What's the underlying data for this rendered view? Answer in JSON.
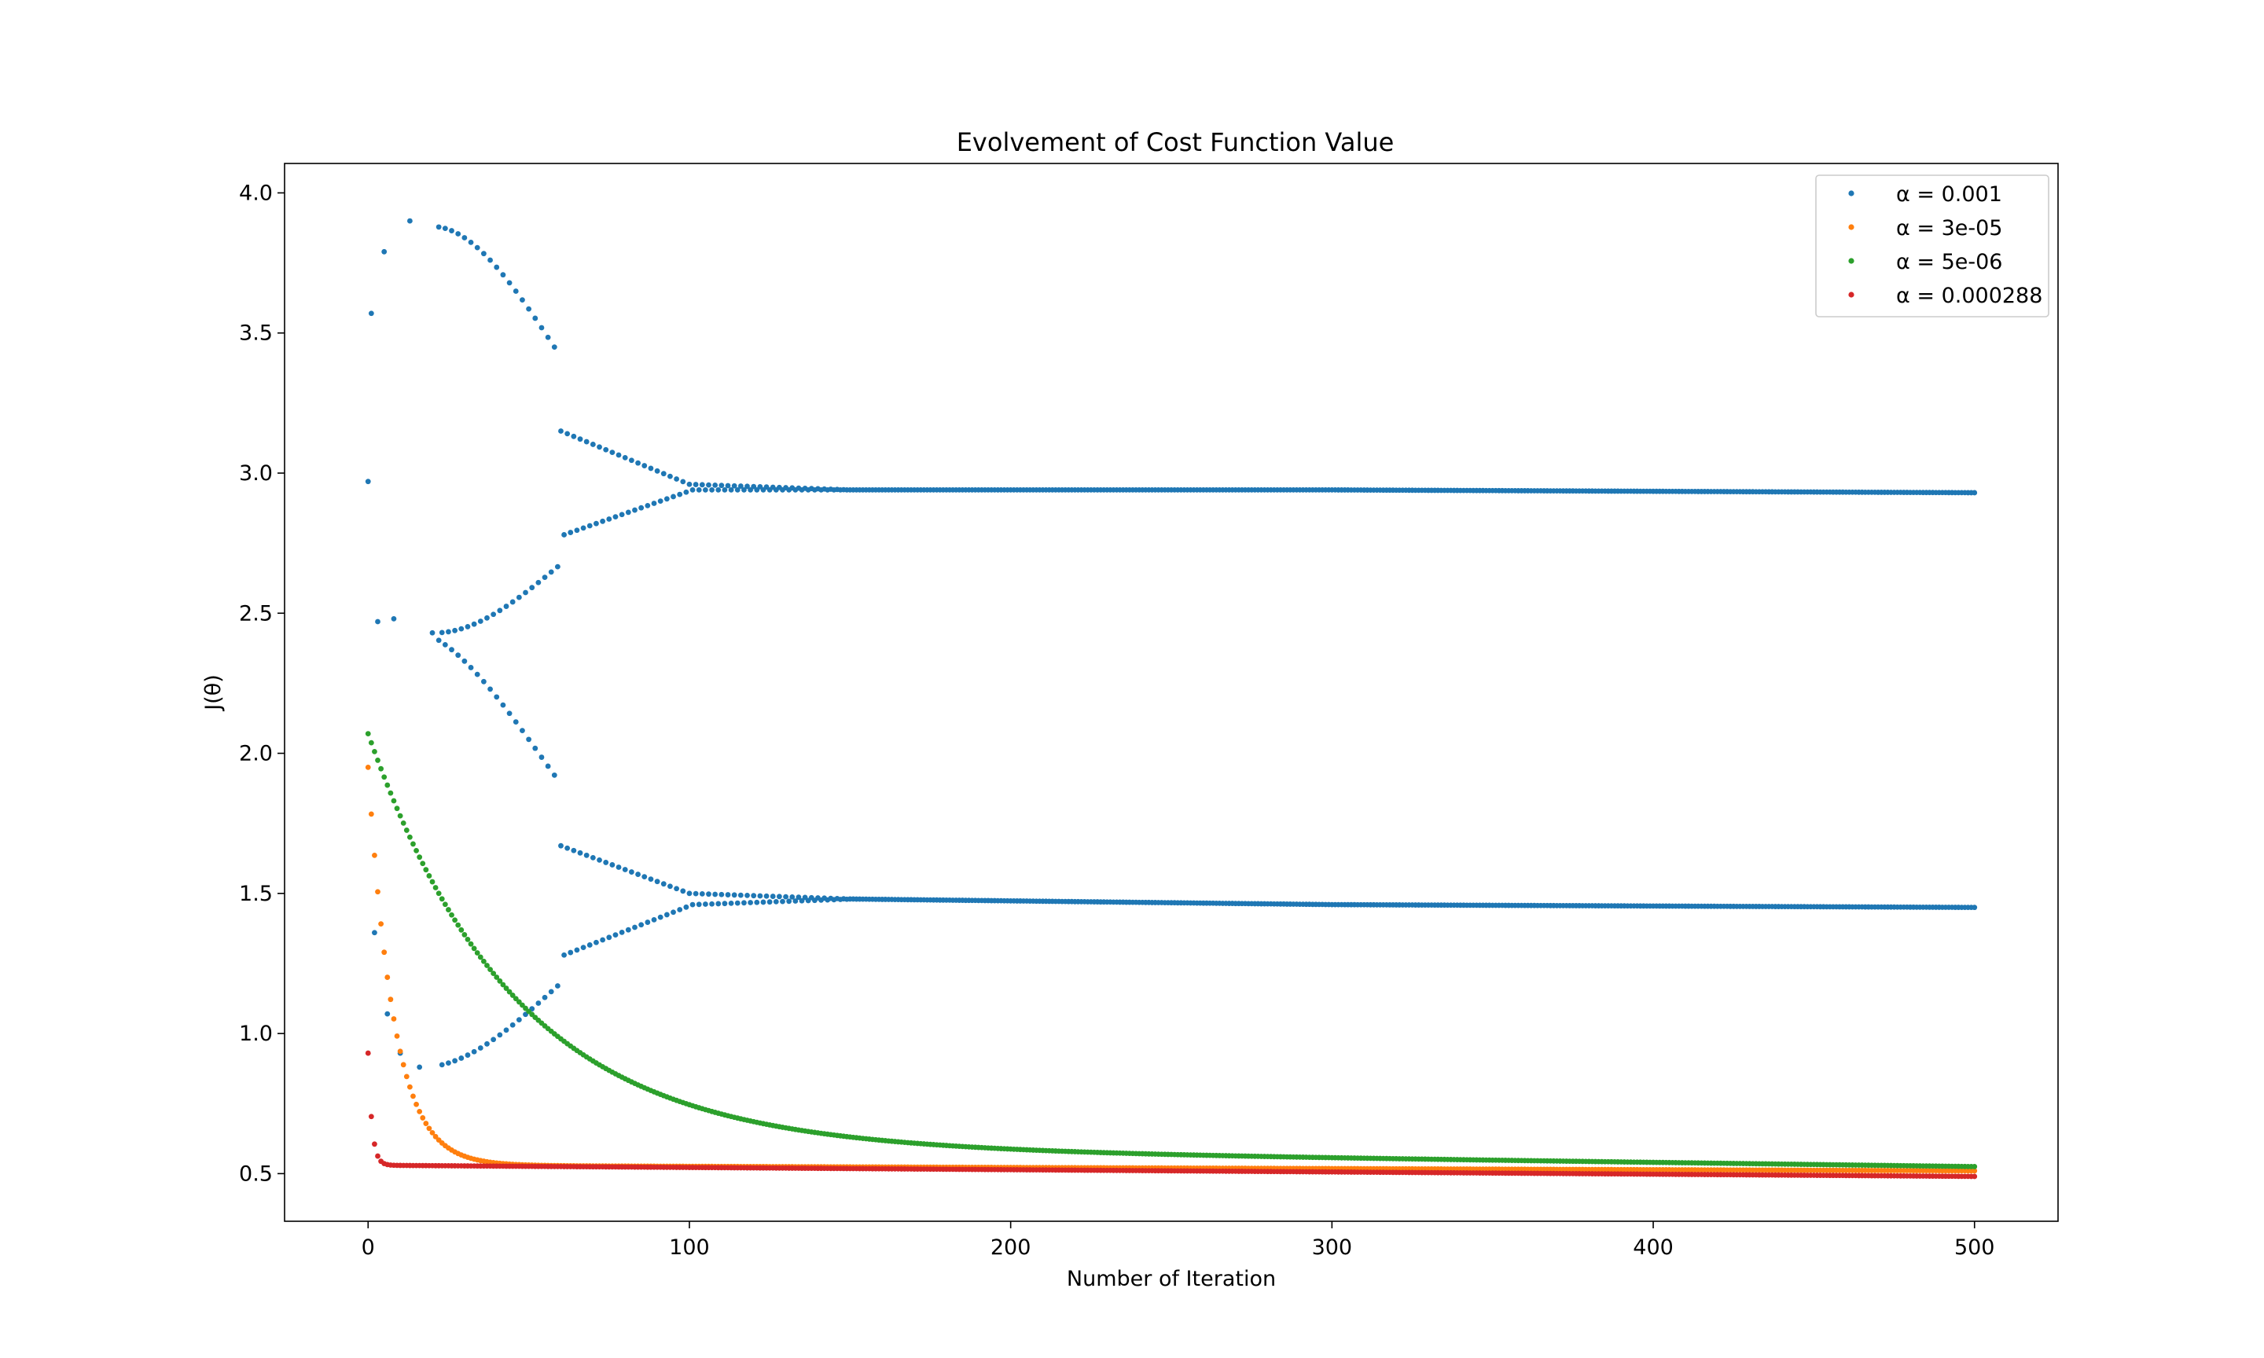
{
  "chart_data": {
    "type": "scatter",
    "title": "Evolvement of Cost Function Value",
    "xlabel": "Number of Iteration",
    "ylabel": "J(θ)",
    "xlim": [
      -26,
      526
    ],
    "ylim": [
      0.33,
      4.105
    ],
    "xticks": [
      0,
      100,
      200,
      300,
      400,
      500
    ],
    "yticks": [
      0.5,
      1.0,
      1.5,
      2.0,
      2.5,
      3.0,
      3.5,
      4.0
    ],
    "grid": false,
    "legend_position": "top-right",
    "series": [
      {
        "name": "α = 0.001",
        "color": "#1f77b4",
        "model": "oscillating_two_branch",
        "x_range": [
          0,
          500
        ],
        "x_step": 2,
        "description_points": {
          "start": [
            [
              0,
              2.97
            ],
            [
              1,
              3.57
            ],
            [
              2,
              1.36
            ],
            [
              3,
              2.47
            ],
            [
              5,
              3.79
            ],
            [
              6,
              1.07
            ],
            [
              8,
              2.48
            ],
            [
              10,
              0.93
            ],
            [
              13,
              3.9
            ],
            [
              16,
              0.88
            ],
            [
              20,
              2.43
            ]
          ],
          "upper_branch_end": [
            [
              60,
              3.15
            ],
            [
              100,
              2.96
            ],
            [
              150,
              2.94
            ],
            [
              300,
              2.94
            ],
            [
              500,
              2.93
            ]
          ],
          "middle_branch_end": [
            [
              60,
              2.78
            ],
            [
              100,
              2.94
            ],
            [
              150,
              2.94
            ],
            [
              300,
              2.94
            ],
            [
              500,
              2.93
            ]
          ],
          "lower_upper_end": [
            [
              60,
              1.67
            ],
            [
              100,
              1.5
            ],
            [
              150,
              1.48
            ],
            [
              300,
              1.46
            ],
            [
              500,
              1.45
            ]
          ],
          "lower_lower_end": [
            [
              60,
              1.28
            ],
            [
              100,
              1.46
            ],
            [
              150,
              1.48
            ],
            [
              300,
              1.46
            ],
            [
              500,
              1.45
            ]
          ]
        }
      },
      {
        "name": "α = 3e-05",
        "color": "#ff7f0e",
        "model": "exp_decay",
        "x_range": [
          0,
          500
        ],
        "start": 1.95,
        "plateau_start": 0.53,
        "plateau_end": 0.51,
        "tau": 8.0
      },
      {
        "name": "α = 5e-06",
        "color": "#2ca02c",
        "model": "exp_decay",
        "x_range": [
          0,
          500
        ],
        "start": 2.07,
        "plateau_start": 0.6,
        "plateau_end": 0.525,
        "tau": 45.0
      },
      {
        "name": "α = 0.000288",
        "color": "#d62728",
        "model": "exp_decay",
        "x_range": [
          0,
          500
        ],
        "start": 0.93,
        "plateau_start": 0.53,
        "plateau_end": 0.49,
        "tau": 1.2
      }
    ]
  }
}
